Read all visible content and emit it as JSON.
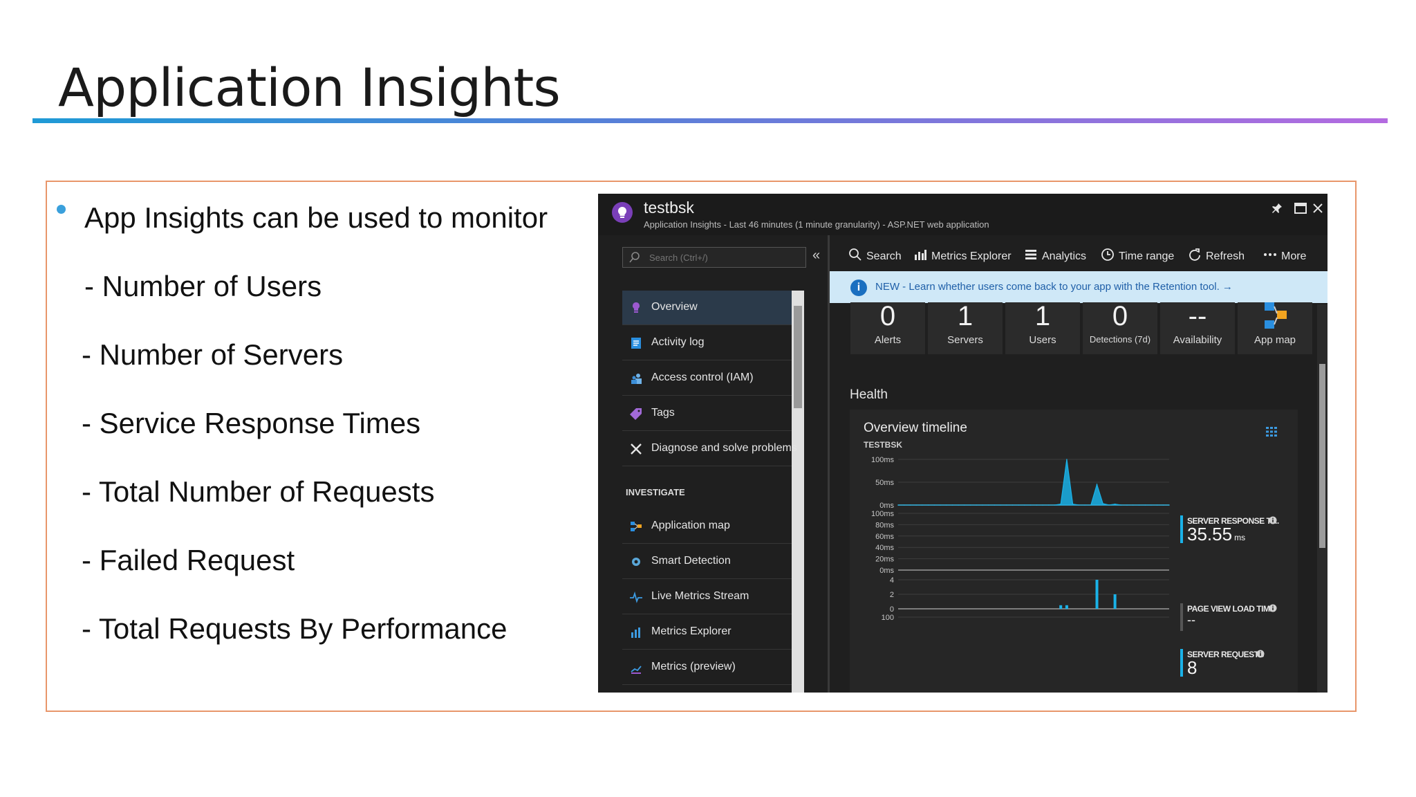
{
  "slide": {
    "title": "Application Insights",
    "bullets": [
      "App Insights can be used to monitor",
      "- Number of Users",
      "- Number of Servers",
      "- Service Response Times",
      "- Total Number of Requests",
      "- Failed Request",
      "- Total Requests By Performance"
    ]
  },
  "colors": {
    "title_rule_start": "#1f9ad6",
    "title_rule_end": "#b46be0",
    "frame_border": "#e8966a",
    "bullet": "#3aa0dc",
    "chart_series": "#1ab2e8",
    "panel_bg": "#1f1f1f",
    "banner_bg": "#cfe8f7"
  },
  "app": {
    "name": "testbsk",
    "subtitle": "Application Insights - Last 46 minutes (1 minute granularity) - ASP.NET web application",
    "window_controls": [
      "pin-icon",
      "maximize-icon",
      "close-icon"
    ]
  },
  "nav": {
    "search_placeholder": "Search (Ctrl+/)",
    "collapse_glyph": "«",
    "items": [
      {
        "label": "Overview",
        "icon": "lightbulb-icon",
        "active": true
      },
      {
        "label": "Activity log",
        "icon": "log-icon"
      },
      {
        "label": "Access control (IAM)",
        "icon": "users-icon"
      },
      {
        "label": "Tags",
        "icon": "tag-icon"
      },
      {
        "label": "Diagnose and solve problems",
        "icon": "wrench-icon"
      }
    ],
    "section_heading": "INVESTIGATE",
    "investigate_items": [
      {
        "label": "Application map",
        "icon": "app-map-icon"
      },
      {
        "label": "Smart Detection",
        "icon": "smart-detection-icon"
      },
      {
        "label": "Live Metrics Stream",
        "icon": "live-metrics-icon"
      },
      {
        "label": "Metrics Explorer",
        "icon": "metrics-explorer-icon"
      },
      {
        "label": "Metrics (preview)",
        "icon": "metrics-preview-icon"
      }
    ]
  },
  "toolbar": {
    "items": [
      {
        "label": "Search",
        "icon": "search-icon"
      },
      {
        "label": "Metrics Explorer",
        "icon": "bar-chart-icon"
      },
      {
        "label": "Analytics",
        "icon": "analytics-icon"
      },
      {
        "label": "Time range",
        "icon": "clock-icon"
      },
      {
        "label": "Refresh",
        "icon": "refresh-icon"
      },
      {
        "label": "More",
        "icon": "more-icon"
      }
    ]
  },
  "banner": {
    "text": "NEW - Learn whether users come back to your app with the Retention tool. →"
  },
  "tiles": [
    {
      "value": "0",
      "label": "Alerts"
    },
    {
      "value": "1",
      "label": "Servers"
    },
    {
      "value": "1",
      "label": "Users"
    },
    {
      "value": "0",
      "label": "Detections (7d)"
    },
    {
      "value": "--",
      "label": "Availability"
    },
    {
      "value": "",
      "label": "App map"
    }
  ],
  "health": {
    "heading": "Health",
    "timeline_title": "Overview timeline",
    "timeline_subtitle": "TESTBSK",
    "metrics": [
      {
        "label": "SERVER RESPONSE TI...",
        "value": "35.55",
        "unit": "ms"
      },
      {
        "label": "PAGE VIEW LOAD TIME",
        "value": "--",
        "unit": ""
      },
      {
        "label": "SERVER REQUESTS",
        "value": "8",
        "unit": ""
      }
    ]
  },
  "chart_data": [
    {
      "type": "area",
      "name": "server-response-time",
      "y_ticks": [
        "100ms",
        "50ms",
        "0ms"
      ],
      "ylim": [
        0,
        100
      ],
      "unit": "ms",
      "x": [
        0,
        1,
        2,
        3,
        4,
        5,
        6,
        7,
        8,
        9,
        10,
        11,
        12,
        13,
        14,
        15,
        16,
        17,
        18,
        19,
        20,
        21,
        22,
        23,
        24,
        25,
        26,
        27,
        28,
        29,
        30,
        31,
        32,
        33,
        34,
        35,
        36,
        37,
        38,
        39,
        40,
        41,
        42,
        43,
        44,
        45
      ],
      "values": [
        0,
        0,
        0,
        0,
        0,
        0,
        0,
        0,
        0,
        0,
        0,
        0,
        0,
        0,
        0,
        0,
        0,
        0,
        0,
        0,
        0,
        0,
        0,
        0,
        0,
        0,
        0,
        2,
        100,
        2,
        0,
        0,
        0,
        45,
        3,
        0,
        2,
        0,
        0,
        0,
        0,
        0,
        0,
        0,
        0,
        0
      ]
    },
    {
      "type": "line",
      "name": "page-view-load-time",
      "y_ticks": [
        "100ms",
        "80ms",
        "60ms",
        "40ms",
        "20ms",
        "0ms"
      ],
      "ylim": [
        0,
        100
      ],
      "unit": "ms",
      "values": []
    },
    {
      "type": "bar",
      "name": "server-requests",
      "y_ticks": [
        "4",
        "2",
        "0"
      ],
      "ylim": [
        0,
        4
      ],
      "x": [
        0,
        1,
        2,
        3,
        4,
        5,
        6,
        7,
        8,
        9,
        10,
        11,
        12,
        13,
        14,
        15,
        16,
        17,
        18,
        19,
        20,
        21,
        22,
        23,
        24,
        25,
        26,
        27,
        28,
        29,
        30,
        31,
        32,
        33,
        34,
        35,
        36,
        37,
        38,
        39,
        40,
        41,
        42,
        43,
        44,
        45
      ],
      "values": [
        0,
        0,
        0,
        0,
        0,
        0,
        0,
        0,
        0,
        0,
        0,
        0,
        0,
        0,
        0,
        0,
        0,
        0,
        0,
        0,
        0,
        0,
        0,
        0,
        0,
        0,
        0,
        0.5,
        0.5,
        0,
        0,
        0,
        0,
        4,
        0,
        0,
        2,
        0,
        0,
        0,
        0,
        0,
        0,
        0,
        0,
        0
      ]
    },
    {
      "type": "bar",
      "name": "next-chart",
      "y_ticks": [
        "100"
      ],
      "values": []
    }
  ]
}
